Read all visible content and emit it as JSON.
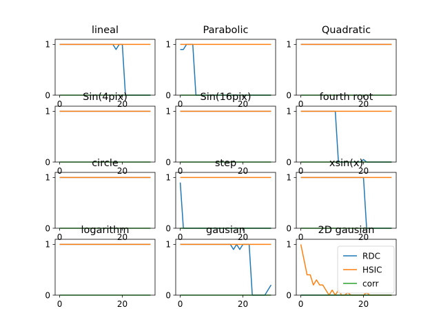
{
  "chart_data": {
    "type": "line",
    "grid": false,
    "rows": 4,
    "cols": 3,
    "xlim": [
      -1.45,
      30.45
    ],
    "ylim": [
      0,
      1.1
    ],
    "yticks": [
      0,
      1
    ],
    "xticks": [
      0,
      20
    ],
    "legend": {
      "placement": "lower-right",
      "subplot": "2D gausian",
      "entries": [
        "RDC",
        "HSIC",
        "corr"
      ]
    },
    "series_styles": [
      {
        "name": "RDC",
        "color": "#1f77b4"
      },
      {
        "name": "HSIC",
        "color": "#ff7f0e"
      },
      {
        "name": "corr",
        "color": "#2ca02c"
      }
    ],
    "subplots": [
      {
        "title": "lineal",
        "series": [
          {
            "name": "RDC",
            "points": [
              [
                0,
                1
              ],
              [
                17,
                1
              ],
              [
                18,
                0.9
              ],
              [
                19,
                1
              ],
              [
                20,
                1
              ],
              [
                21,
                0
              ],
              [
                29,
                0
              ]
            ]
          },
          {
            "name": "HSIC",
            "points": [
              [
                0,
                1
              ],
              [
                29,
                1
              ]
            ]
          },
          {
            "name": "corr",
            "points": [
              [
                0,
                0
              ],
              [
                29,
                0
              ]
            ]
          }
        ]
      },
      {
        "title": "Parabolic",
        "series": [
          {
            "name": "RDC",
            "points": [
              [
                0,
                0.9
              ],
              [
                1,
                0.9
              ],
              [
                2,
                1
              ],
              [
                3,
                1
              ],
              [
                4,
                1
              ],
              [
                5,
                0
              ],
              [
                29,
                0
              ]
            ]
          },
          {
            "name": "HSIC",
            "points": [
              [
                0,
                1
              ],
              [
                29,
                1
              ]
            ]
          },
          {
            "name": "corr",
            "points": [
              [
                0,
                0
              ],
              [
                29,
                0
              ]
            ]
          }
        ]
      },
      {
        "title": "Quadratic",
        "series": [
          {
            "name": "RDC",
            "points": [
              [
                0,
                1
              ],
              [
                29,
                1
              ]
            ]
          },
          {
            "name": "HSIC",
            "points": [
              [
                0,
                1
              ],
              [
                29,
                1
              ]
            ]
          },
          {
            "name": "corr",
            "points": [
              [
                0,
                0
              ],
              [
                29,
                0
              ]
            ]
          }
        ]
      },
      {
        "title": "Sin(4pix)",
        "series": [
          {
            "name": "RDC",
            "points": [
              [
                0,
                1
              ],
              [
                29,
                1
              ]
            ]
          },
          {
            "name": "HSIC",
            "points": [
              [
                0,
                1
              ],
              [
                29,
                1
              ]
            ]
          },
          {
            "name": "corr",
            "points": [
              [
                0,
                0
              ],
              [
                29,
                0
              ]
            ]
          }
        ]
      },
      {
        "title": "Sin(16pix)",
        "series": [
          {
            "name": "RDC",
            "points": [
              [
                0,
                1
              ],
              [
                29,
                1
              ]
            ]
          },
          {
            "name": "HSIC",
            "points": [
              [
                0,
                1
              ],
              [
                29,
                1
              ]
            ]
          },
          {
            "name": "corr",
            "points": [
              [
                0,
                0
              ],
              [
                29,
                0
              ]
            ]
          }
        ]
      },
      {
        "title": "fourth root",
        "series": [
          {
            "name": "RDC",
            "points": [
              [
                0,
                1
              ],
              [
                11,
                1
              ],
              [
                12,
                0
              ],
              [
                19,
                0
              ],
              [
                20,
                0.05
              ],
              [
                21,
                0
              ],
              [
                29,
                0
              ]
            ]
          },
          {
            "name": "HSIC",
            "points": [
              [
                0,
                1
              ],
              [
                29,
                1
              ]
            ]
          },
          {
            "name": "corr",
            "points": [
              [
                0,
                0
              ],
              [
                29,
                0
              ]
            ]
          }
        ]
      },
      {
        "title": "circle",
        "series": [
          {
            "name": "RDC",
            "points": [
              [
                0,
                1
              ],
              [
                29,
                1
              ]
            ]
          },
          {
            "name": "HSIC",
            "points": [
              [
                0,
                1
              ],
              [
                29,
                1
              ]
            ]
          },
          {
            "name": "corr",
            "points": [
              [
                0,
                0
              ],
              [
                29,
                0
              ]
            ]
          }
        ]
      },
      {
        "title": "step",
        "series": [
          {
            "name": "RDC",
            "points": [
              [
                0,
                0.9
              ],
              [
                1,
                0
              ],
              [
                29,
                0
              ]
            ]
          },
          {
            "name": "HSIC",
            "points": [
              [
                0,
                1
              ],
              [
                29,
                1
              ]
            ]
          },
          {
            "name": "corr",
            "points": [
              [
                0,
                0
              ],
              [
                29,
                0
              ]
            ]
          }
        ]
      },
      {
        "title": "xsin(x)",
        "series": [
          {
            "name": "RDC",
            "points": [
              [
                0,
                1
              ],
              [
                19,
                1
              ],
              [
                20,
                1
              ],
              [
                21,
                0
              ],
              [
                29,
                0
              ]
            ]
          },
          {
            "name": "HSIC",
            "points": [
              [
                0,
                1
              ],
              [
                29,
                1
              ]
            ]
          },
          {
            "name": "corr",
            "points": [
              [
                0,
                0
              ],
              [
                29,
                0
              ]
            ]
          }
        ]
      },
      {
        "title": "logarithm",
        "series": [
          {
            "name": "RDC",
            "points": [
              [
                0,
                1
              ],
              [
                29,
                1
              ]
            ]
          },
          {
            "name": "HSIC",
            "points": [
              [
                0,
                1
              ],
              [
                29,
                1
              ]
            ]
          },
          {
            "name": "corr",
            "points": [
              [
                0,
                0
              ],
              [
                29,
                0
              ]
            ]
          }
        ]
      },
      {
        "title": "gausian",
        "series": [
          {
            "name": "RDC",
            "points": [
              [
                0,
                1
              ],
              [
                16,
                1
              ],
              [
                17,
                0.9
              ],
              [
                18,
                1
              ],
              [
                19,
                0.9
              ],
              [
                20,
                1
              ],
              [
                22,
                1
              ],
              [
                23,
                0
              ],
              [
                27,
                0
              ],
              [
                29,
                0.2
              ]
            ]
          },
          {
            "name": "HSIC",
            "points": [
              [
                0,
                1
              ],
              [
                29,
                1
              ]
            ]
          },
          {
            "name": "corr",
            "points": [
              [
                0,
                0
              ],
              [
                29,
                0
              ]
            ]
          }
        ]
      },
      {
        "title": "2D gausian",
        "series": [
          {
            "name": "RDC",
            "points": [
              [
                0,
                0
              ],
              [
                29,
                0
              ]
            ]
          },
          {
            "name": "HSIC",
            "points": [
              [
                0,
                1
              ],
              [
                1,
                0.7
              ],
              [
                2,
                0.4
              ],
              [
                3,
                0.4
              ],
              [
                4,
                0.2
              ],
              [
                5,
                0.3
              ],
              [
                6,
                0.2
              ],
              [
                7,
                0.2
              ],
              [
                8,
                0.1
              ],
              [
                9,
                0
              ],
              [
                10,
                0.1
              ],
              [
                11,
                0
              ],
              [
                12,
                0.1
              ],
              [
                13,
                0
              ],
              [
                14,
                0
              ],
              [
                15,
                0.05
              ],
              [
                16,
                0
              ],
              [
                20,
                0
              ],
              [
                21,
                0.05
              ],
              [
                22,
                0
              ],
              [
                29,
                0
              ]
            ]
          },
          {
            "name": "corr",
            "points": [
              [
                0,
                0
              ],
              [
                29,
                0
              ]
            ]
          }
        ]
      }
    ]
  }
}
